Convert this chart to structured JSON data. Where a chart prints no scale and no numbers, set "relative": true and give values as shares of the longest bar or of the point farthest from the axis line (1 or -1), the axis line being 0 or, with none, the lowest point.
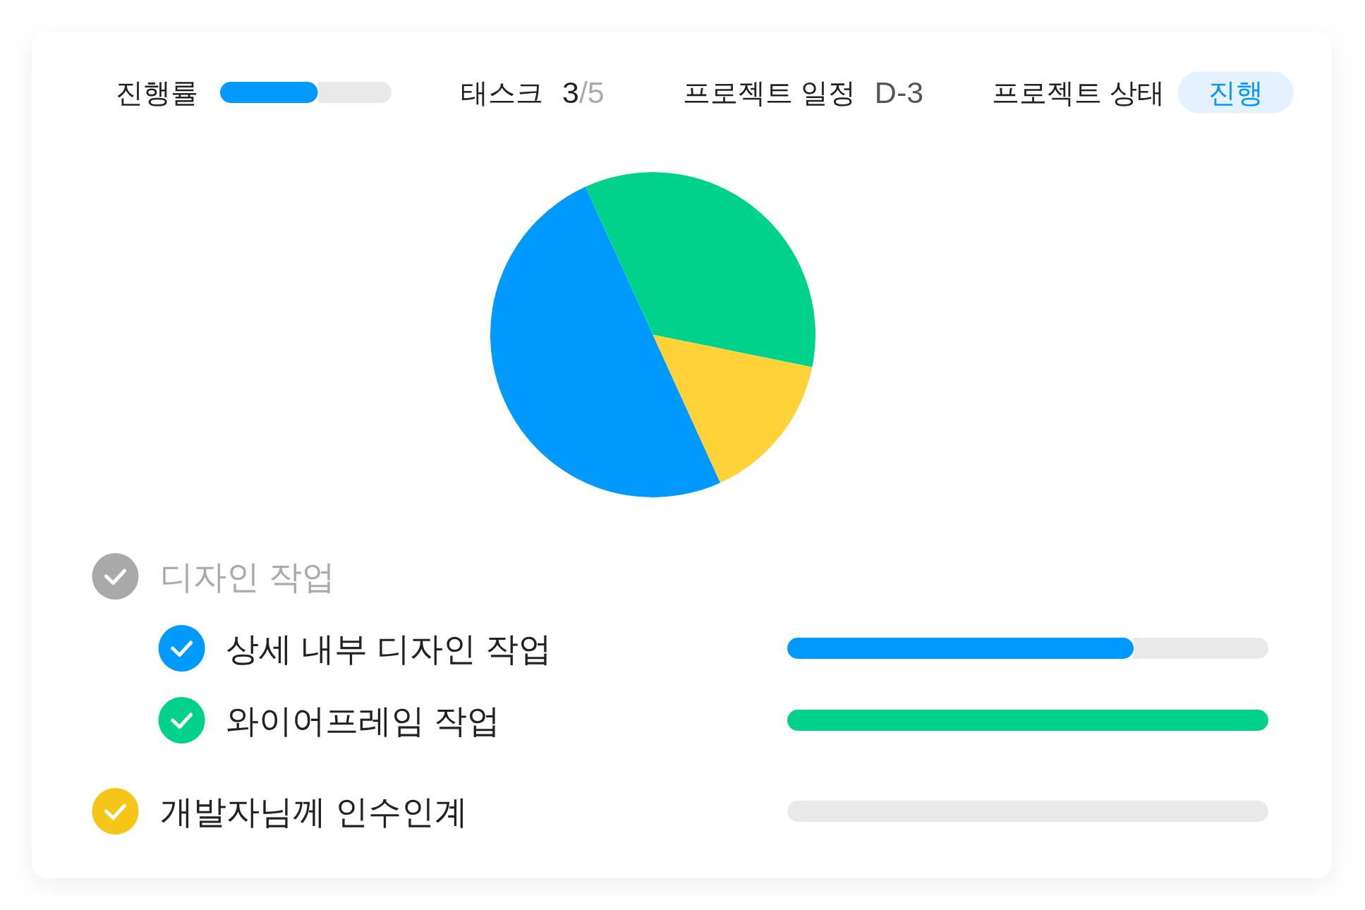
{
  "chart_data": [
    {
      "type": "bar",
      "orientation": "horizontal",
      "stacked": true,
      "relative": true,
      "categories": [
        "진행률"
      ],
      "series": [
        {
          "color": "#0099ff",
          "values": [
            0.57
          ]
        },
        {
          "color": "#e9e9e9",
          "values": [
            0.43
          ]
        }
      ]
    },
    {
      "type": "other",
      "annotations": [
        "태스크",
        "3/5",
        "프로젝트 일정",
        "D-3",
        "프로젝트 상태",
        "진행"
      ]
    },
    {
      "type": "pie",
      "categories": [
        null,
        null,
        null
      ],
      "values": [
        50,
        35,
        15
      ],
      "colors": [
        "#0099ff",
        "#00d18b",
        "#ffd23a"
      ]
    },
    {
      "type": "bar",
      "orientation": "horizontal",
      "stacked": true,
      "relative": true,
      "title": "디자인 작업",
      "categories": [
        "상세 내부 디자인 작업",
        "와이어프레임 작업"
      ],
      "series": [
        {
          "colors": [
            "#0099ff",
            "#00d18b"
          ],
          "values": [
            0.72,
            1
          ]
        },
        {
          "color": "#e9e9e9",
          "values": [
            0.28,
            0
          ]
        }
      ]
    },
    {
      "type": "bar",
      "orientation": "horizontal",
      "stacked": true,
      "relative": true,
      "categories": [
        "개발자님께 인수인계"
      ],
      "series": [
        {
          "values": [
            0
          ]
        },
        {
          "color": "#e9e9e9",
          "values": [
            1
          ]
        }
      ]
    }
  ]
}
